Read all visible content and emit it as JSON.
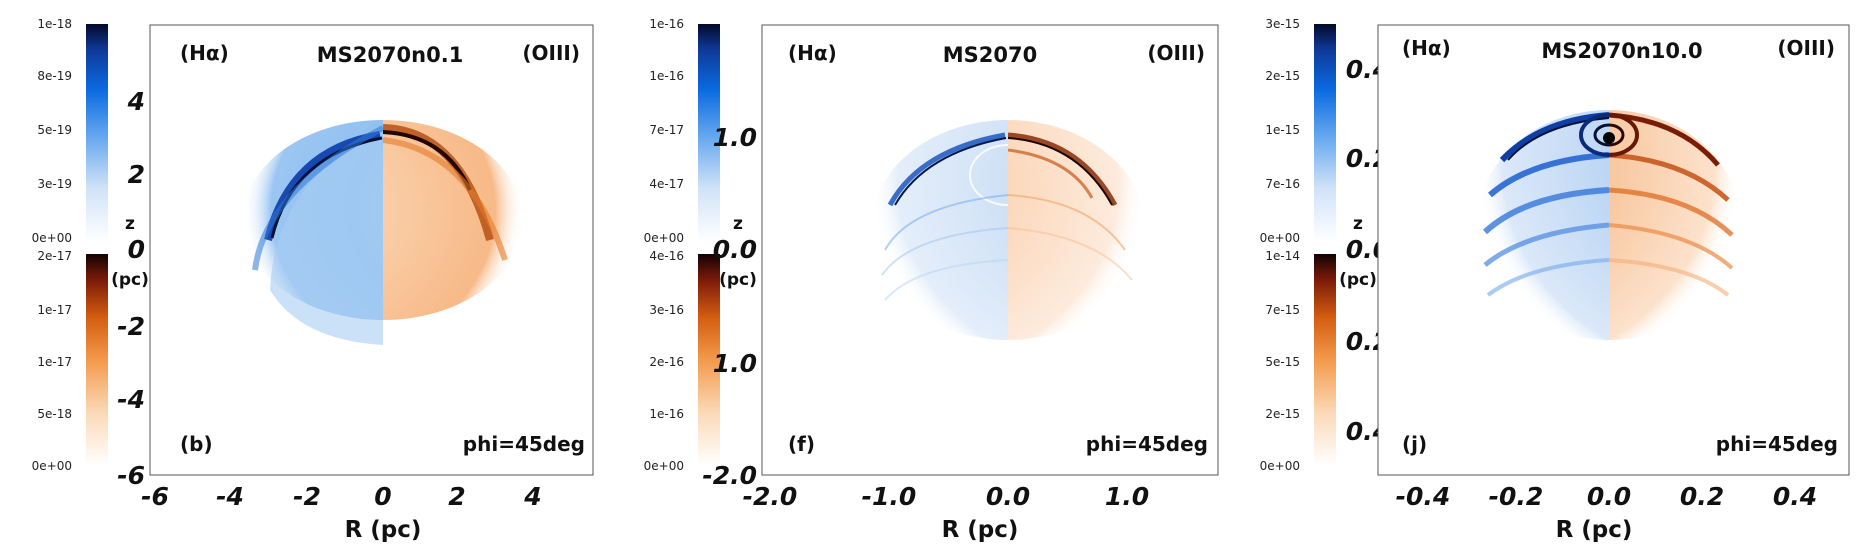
{
  "colors": {
    "halpha_colormap": [
      "#ffffff",
      "#cfe2f8",
      "#5ea3ee",
      "#0a6ae0",
      "#0f3a9a",
      "#020a2a"
    ],
    "oiii_colormap": [
      "#ffffff",
      "#fbd9b8",
      "#f39a4c",
      "#d45d10",
      "#7a1a08",
      "#120202"
    ]
  },
  "panels": [
    {
      "title": "MS2070n0.1",
      "left_tag": "(Hα)",
      "right_tag": "(OIII)",
      "letter": "(b)",
      "angle": "phi=45deg",
      "xlabel": "R (pc)",
      "zlabel_z": "z",
      "zlabel_unit": "(pc)",
      "x_ticks": [
        "-6",
        "-4",
        "-2",
        "0",
        "2",
        "4"
      ],
      "z_ticks_upper": [
        "4",
        "2",
        "0"
      ],
      "z_ticks_lower": [
        "-2",
        "-4",
        "-6"
      ],
      "halpha_ticks": [
        "1e-18",
        "8e-19",
        "5e-19",
        "3e-19",
        "0e+00"
      ],
      "oiii_ticks": [
        "2e-17",
        "1e-17",
        "1e-17",
        "5e-18",
        "0e+00"
      ]
    },
    {
      "title": "MS2070",
      "left_tag": "(Hα)",
      "right_tag": "(OIII)",
      "letter": "(f)",
      "angle": "phi=45deg",
      "xlabel": "R (pc)",
      "zlabel_z": "z",
      "zlabel_unit": "(pc)",
      "x_ticks": [
        "-2.0",
        "-1.0",
        "0.0",
        "1.0"
      ],
      "z_ticks_upper": [
        "1.0",
        "0.0"
      ],
      "z_ticks_lower": [
        "1.0",
        "-2.0"
      ],
      "halpha_ticks": [
        "1e-16",
        "1e-16",
        "7e-17",
        "4e-17",
        "0e+00"
      ],
      "oiii_ticks": [
        "4e-16",
        "3e-16",
        "2e-16",
        "1e-16",
        "0e+00"
      ]
    },
    {
      "title": "MS2070n10.0",
      "left_tag": "(Hα)",
      "right_tag": "(OIII)",
      "letter": "(j)",
      "angle": "phi=45deg",
      "xlabel": "R (pc)",
      "zlabel_z": "z",
      "zlabel_unit": "(pc)",
      "x_ticks": [
        "-0.4",
        "-0.2",
        "0.0",
        "0.2",
        "0.4"
      ],
      "z_ticks_upper": [
        "0.4",
        "0.2",
        "0.0"
      ],
      "z_ticks_lower": [
        "0.2",
        "0.4"
      ],
      "halpha_ticks": [
        "3e-15",
        "2e-15",
        "1e-15",
        "7e-16",
        "0e+00"
      ],
      "oiii_ticks": [
        "1e-14",
        "7e-15",
        "5e-15",
        "2e-15",
        "0e+00"
      ]
    }
  ]
}
